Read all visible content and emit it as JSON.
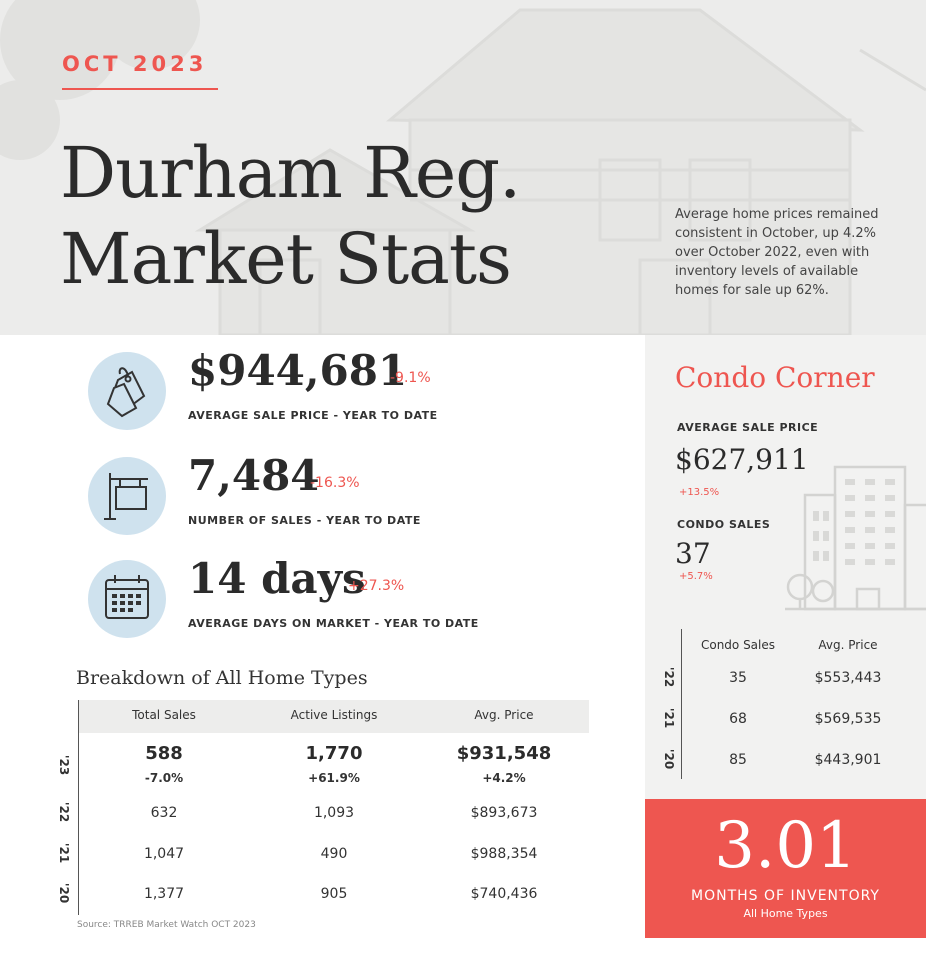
{
  "header": {
    "date": "OCT 2023",
    "title_line1": "Durham Reg.",
    "title_line2": "Market Stats",
    "description": "Average home prices remained consistent in October, up 4.2% over October 2022, even with inventory levels of available homes for sale up 62%."
  },
  "stats": [
    {
      "icon": "price-tag-icon",
      "value": "$944,681",
      "change": "-9.1%",
      "label": "AVERAGE SALE PRICE - YEAR TO DATE"
    },
    {
      "icon": "sale-sign-icon",
      "value": "7,484",
      "change": "-16.3%",
      "label": "NUMBER OF SALES - YEAR TO DATE"
    },
    {
      "icon": "calendar-icon",
      "value": "14 days",
      "change": "+27.3%",
      "label": "AVERAGE DAYS ON MARKET - YEAR TO DATE"
    }
  ],
  "breakdown": {
    "title": "Breakdown of All Home Types",
    "columns": [
      "Total Sales",
      "Active Listings",
      "Avg. Price"
    ],
    "rows": [
      {
        "year": "'23",
        "values": [
          "588",
          "1,770",
          "$931,548"
        ],
        "changes": [
          "-7.0%",
          "+61.9%",
          "+4.2%"
        ]
      },
      {
        "year": "'22",
        "values": [
          "632",
          "1,093",
          "$893,673"
        ]
      },
      {
        "year": "'21",
        "values": [
          "1,047",
          "490",
          "$988,354"
        ]
      },
      {
        "year": "'20",
        "values": [
          "1,377",
          "905",
          "$740,436"
        ]
      }
    ],
    "source": "Source: TRREB Market Watch OCT 2023"
  },
  "condo": {
    "title": "Condo Corner",
    "avg_label": "AVERAGE SALE PRICE",
    "avg_value": "$627,911",
    "avg_change": "+13.5%",
    "sales_label": "CONDO SALES",
    "sales_value": "37",
    "sales_change": "+5.7%",
    "columns": [
      "Condo Sales",
      "Avg. Price"
    ],
    "rows": [
      {
        "year": "'22",
        "values": [
          "35",
          "$553,443"
        ]
      },
      {
        "year": "'21",
        "values": [
          "68",
          "$569,535"
        ]
      },
      {
        "year": "'20",
        "values": [
          "85",
          "$443,901"
        ]
      }
    ]
  },
  "inventory": {
    "value": "3.01",
    "label": "MONTHS OF INVENTORY",
    "sub": "All Home Types"
  },
  "colors": {
    "accent": "#ee5650",
    "icon_bg": "#cfe2ee",
    "text": "#2b2b2b"
  }
}
